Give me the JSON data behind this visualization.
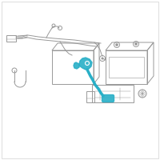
{
  "background_color": "#ffffff",
  "border_color": "#d0d0d0",
  "highlight_color": "#29afc7",
  "line_color": "#999999",
  "line_width": 0.7,
  "fig_width": 2.0,
  "fig_height": 2.0,
  "dpi": 100
}
